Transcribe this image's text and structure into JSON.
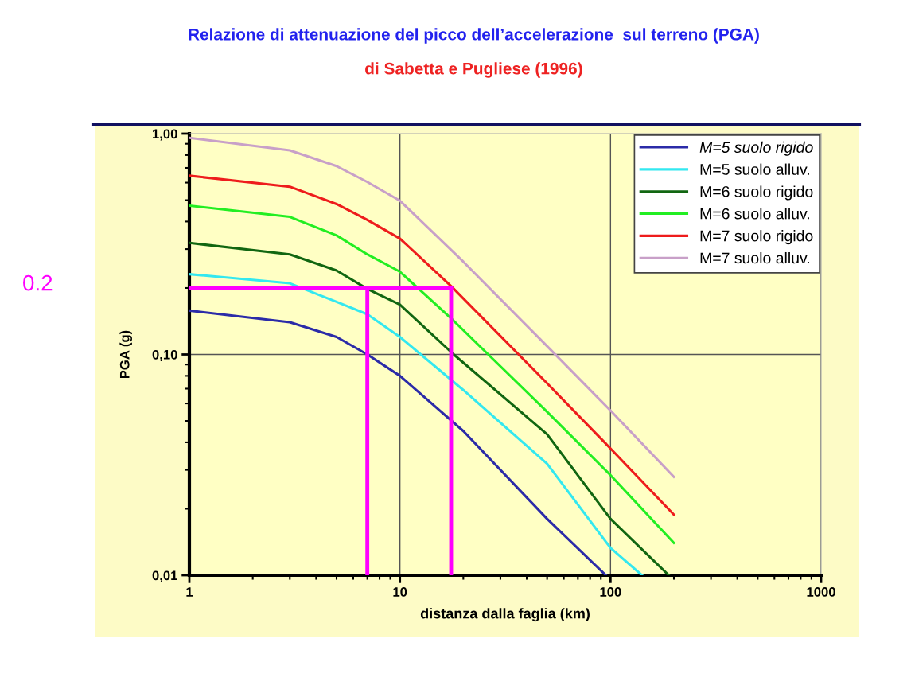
{
  "chart_data": {
    "type": "line",
    "title": "Relazione di attenuazione del picco dell’accelerazione  sul terreno (PGA)",
    "subtitle": "di Sabetta e Pugliese (1996)",
    "xlabel": "distanza dalla faglia (km)",
    "ylabel": "PGA (g)",
    "log": "xy",
    "xlim": [
      1,
      1000
    ],
    "ylim": [
      0.01,
      1
    ],
    "xticks": [
      1,
      10,
      100,
      1000
    ],
    "yticks": [
      {
        "value": 0.01,
        "label": "0,01"
      },
      {
        "value": 0.1,
        "label": "0,10"
      },
      {
        "value": 1,
        "label": "1,00"
      }
    ],
    "grid": true,
    "legend": "top right",
    "line_style": "solid",
    "marker": "none",
    "series": [
      {
        "name": "M=5 suolo rigido",
        "color": "#2b2ba8",
        "x": [
          1,
          3,
          5,
          7,
          10,
          20,
          50,
          95
        ],
        "values": [
          0.158,
          0.14,
          0.12,
          0.1,
          0.08,
          0.045,
          0.018,
          0.01
        ]
      },
      {
        "name": "M=5 suolo alluv.",
        "color": "#33e8f0",
        "x": [
          1,
          3,
          5,
          7,
          10,
          20,
          50,
          100,
          141
        ],
        "values": [
          0.231,
          0.21,
          0.173,
          0.152,
          0.12,
          0.069,
          0.032,
          0.0133,
          0.01
        ]
      },
      {
        "name": "M=6 suolo rigido",
        "color": "#116611",
        "x": [
          1,
          3,
          5,
          7,
          10,
          18,
          50,
          100,
          189
        ],
        "values": [
          0.32,
          0.284,
          0.24,
          0.198,
          0.168,
          0.1,
          0.0435,
          0.018,
          0.01
        ]
      },
      {
        "name": "M=6 suolo alluv.",
        "color": "#22ee22",
        "x": [
          1,
          3,
          5,
          7,
          10,
          18,
          50,
          100,
          200
        ],
        "values": [
          0.472,
          0.42,
          0.346,
          0.284,
          0.237,
          0.142,
          0.055,
          0.0284,
          0.014
        ]
      },
      {
        "name": "M=7 suolo rigido",
        "color": "#ee1c1c",
        "x": [
          1,
          3,
          5,
          7,
          10,
          17.5,
          50,
          100,
          200
        ],
        "values": [
          0.645,
          0.575,
          0.48,
          0.407,
          0.335,
          0.204,
          0.074,
          0.0375,
          0.0188
        ]
      },
      {
        "name": "M=7 suolo alluv.",
        "color": "#c8a0c8",
        "x": [
          1,
          3,
          5,
          7,
          10,
          20,
          50,
          100,
          200
        ],
        "values": [
          0.958,
          0.84,
          0.713,
          0.604,
          0.497,
          0.263,
          0.109,
          0.0557,
          0.0279
        ]
      },
      {
        "color": "#ff00ff",
        "x": [
          1,
          17.5
        ],
        "values": [
          0.2,
          0.2
        ]
      },
      {
        "color": "#ff00ff",
        "x": [
          7,
          7
        ],
        "values": [
          0.2,
          0.01
        ]
      },
      {
        "color": "#ff00ff",
        "x": [
          17.5,
          17.5
        ],
        "values": [
          0.2,
          0.01
        ]
      }
    ],
    "annotations": [
      "0.2"
    ]
  }
}
